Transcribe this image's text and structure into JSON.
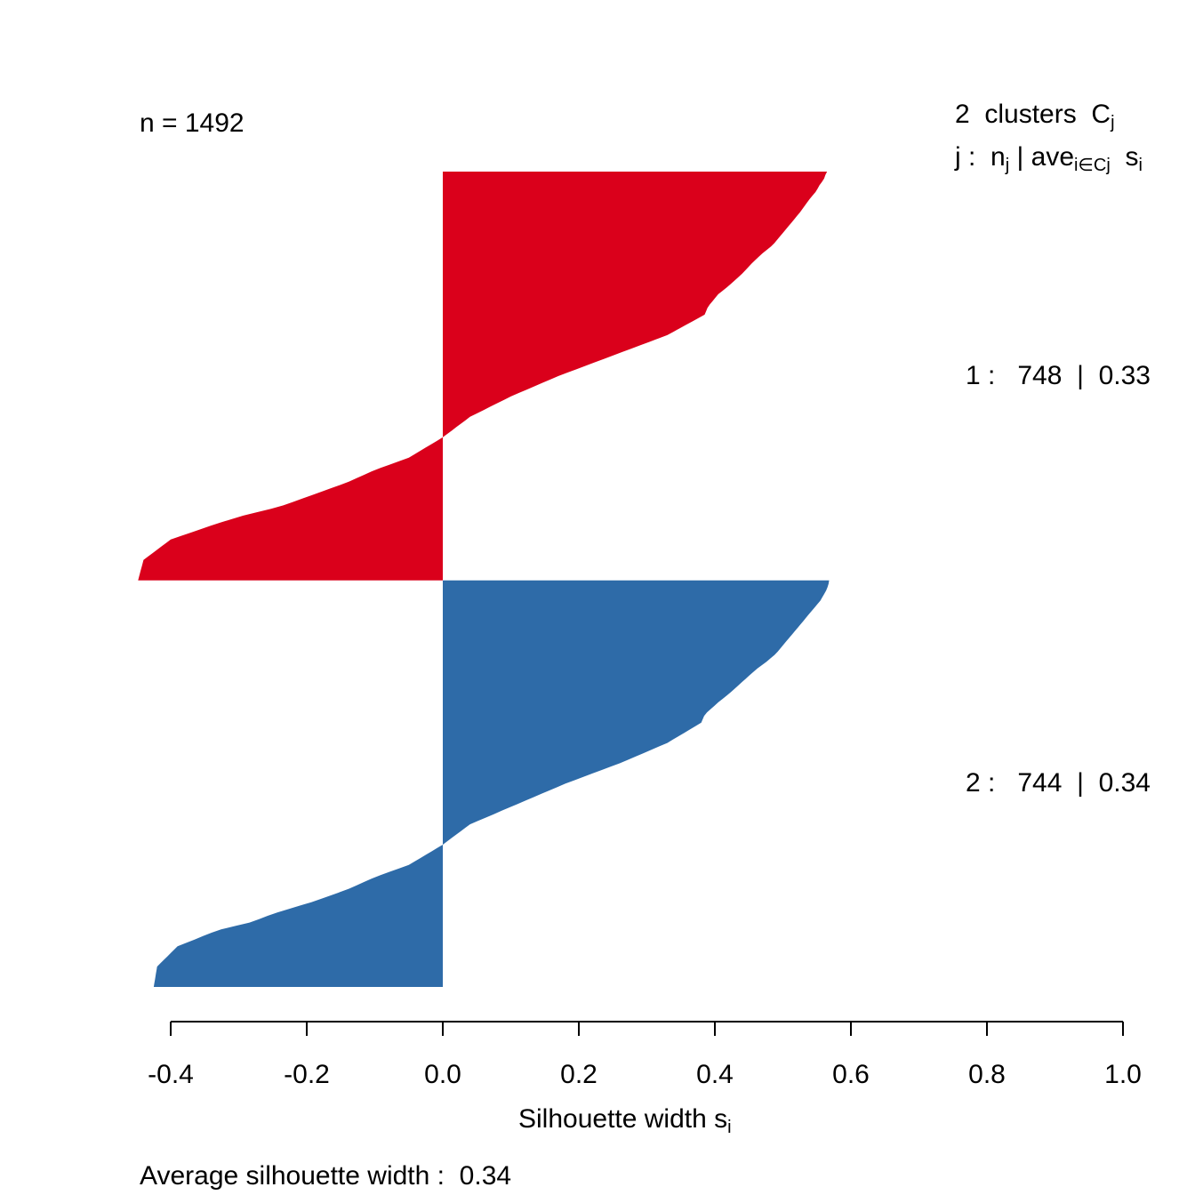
{
  "colors": {
    "cluster_1": "#da001b",
    "cluster_2": "#2e6ba8",
    "axis": "#000000"
  },
  "header": {
    "n_label": "n = 1492",
    "clusters_count": "2",
    "clusters_word": "clusters",
    "clusters_symbol": "C",
    "clusters_symbol_sub": "j",
    "legend_j": "j :",
    "legend_n": "n",
    "legend_n_sub": "j",
    "legend_bar": "|",
    "legend_ave": "ave",
    "legend_ave_sub": "i∈Cj",
    "legend_s": "s",
    "legend_s_sub": "i"
  },
  "clusters": [
    {
      "id": "1 :",
      "n": "748",
      "sep": "|",
      "ave": "0.33"
    },
    {
      "id": "2 :",
      "n": "744",
      "sep": "|",
      "ave": "0.34"
    }
  ],
  "footer": {
    "avg_label": "Average silhouette width :",
    "avg_value": "0.34"
  },
  "chart_data": {
    "type": "bar",
    "orientation": "horizontal",
    "xlabel": "Silhouette width s",
    "xlabel_sub": "i",
    "xlim": [
      -0.4,
      1.0
    ],
    "xticks": [
      "-0.4",
      "-0.2",
      "0.0",
      "0.2",
      "0.4",
      "0.6",
      "0.8",
      "1.0"
    ],
    "xtick_values": [
      -0.4,
      -0.2,
      0.0,
      0.2,
      0.4,
      0.6,
      0.8,
      1.0
    ],
    "n": 1492,
    "average_silhouette_width": 0.34,
    "series": [
      {
        "name": "1",
        "n": 748,
        "average": 0.33,
        "profile_fraction": [
          0,
          0.01,
          0.02,
          0.03,
          0.05,
          0.07,
          0.1,
          0.12,
          0.15,
          0.18,
          0.2,
          0.22,
          0.25,
          0.28,
          0.3,
          0.33,
          0.35,
          0.4,
          0.45,
          0.5,
          0.55,
          0.6,
          0.65,
          0.7,
          0.73,
          0.76,
          0.79,
          0.82,
          0.84,
          0.86,
          0.9,
          0.95,
          1.0
        ],
        "profile_value": [
          0.565,
          0.562,
          0.56,
          0.555,
          0.548,
          0.538,
          0.525,
          0.515,
          0.5,
          0.485,
          0.47,
          0.457,
          0.44,
          0.42,
          0.405,
          0.39,
          0.385,
          0.33,
          0.25,
          0.17,
          0.1,
          0.04,
          0.0,
          -0.05,
          -0.1,
          -0.14,
          -0.19,
          -0.24,
          -0.29,
          -0.33,
          -0.4,
          -0.44,
          -0.448
        ]
      },
      {
        "name": "2",
        "n": 744,
        "average": 0.34,
        "profile_fraction": [
          0,
          0.01,
          0.02,
          0.03,
          0.05,
          0.07,
          0.1,
          0.12,
          0.15,
          0.18,
          0.2,
          0.22,
          0.25,
          0.28,
          0.3,
          0.33,
          0.35,
          0.4,
          0.45,
          0.5,
          0.55,
          0.6,
          0.65,
          0.7,
          0.73,
          0.76,
          0.79,
          0.82,
          0.84,
          0.86,
          0.9,
          0.95,
          1.0
        ],
        "profile_value": [
          0.568,
          0.567,
          0.565,
          0.562,
          0.555,
          0.545,
          0.53,
          0.52,
          0.505,
          0.49,
          0.476,
          0.46,
          0.44,
          0.42,
          0.405,
          0.385,
          0.38,
          0.33,
          0.26,
          0.18,
          0.11,
          0.04,
          0.0,
          -0.05,
          -0.1,
          -0.14,
          -0.19,
          -0.25,
          -0.28,
          -0.33,
          -0.39,
          -0.42,
          -0.425
        ]
      }
    ]
  }
}
